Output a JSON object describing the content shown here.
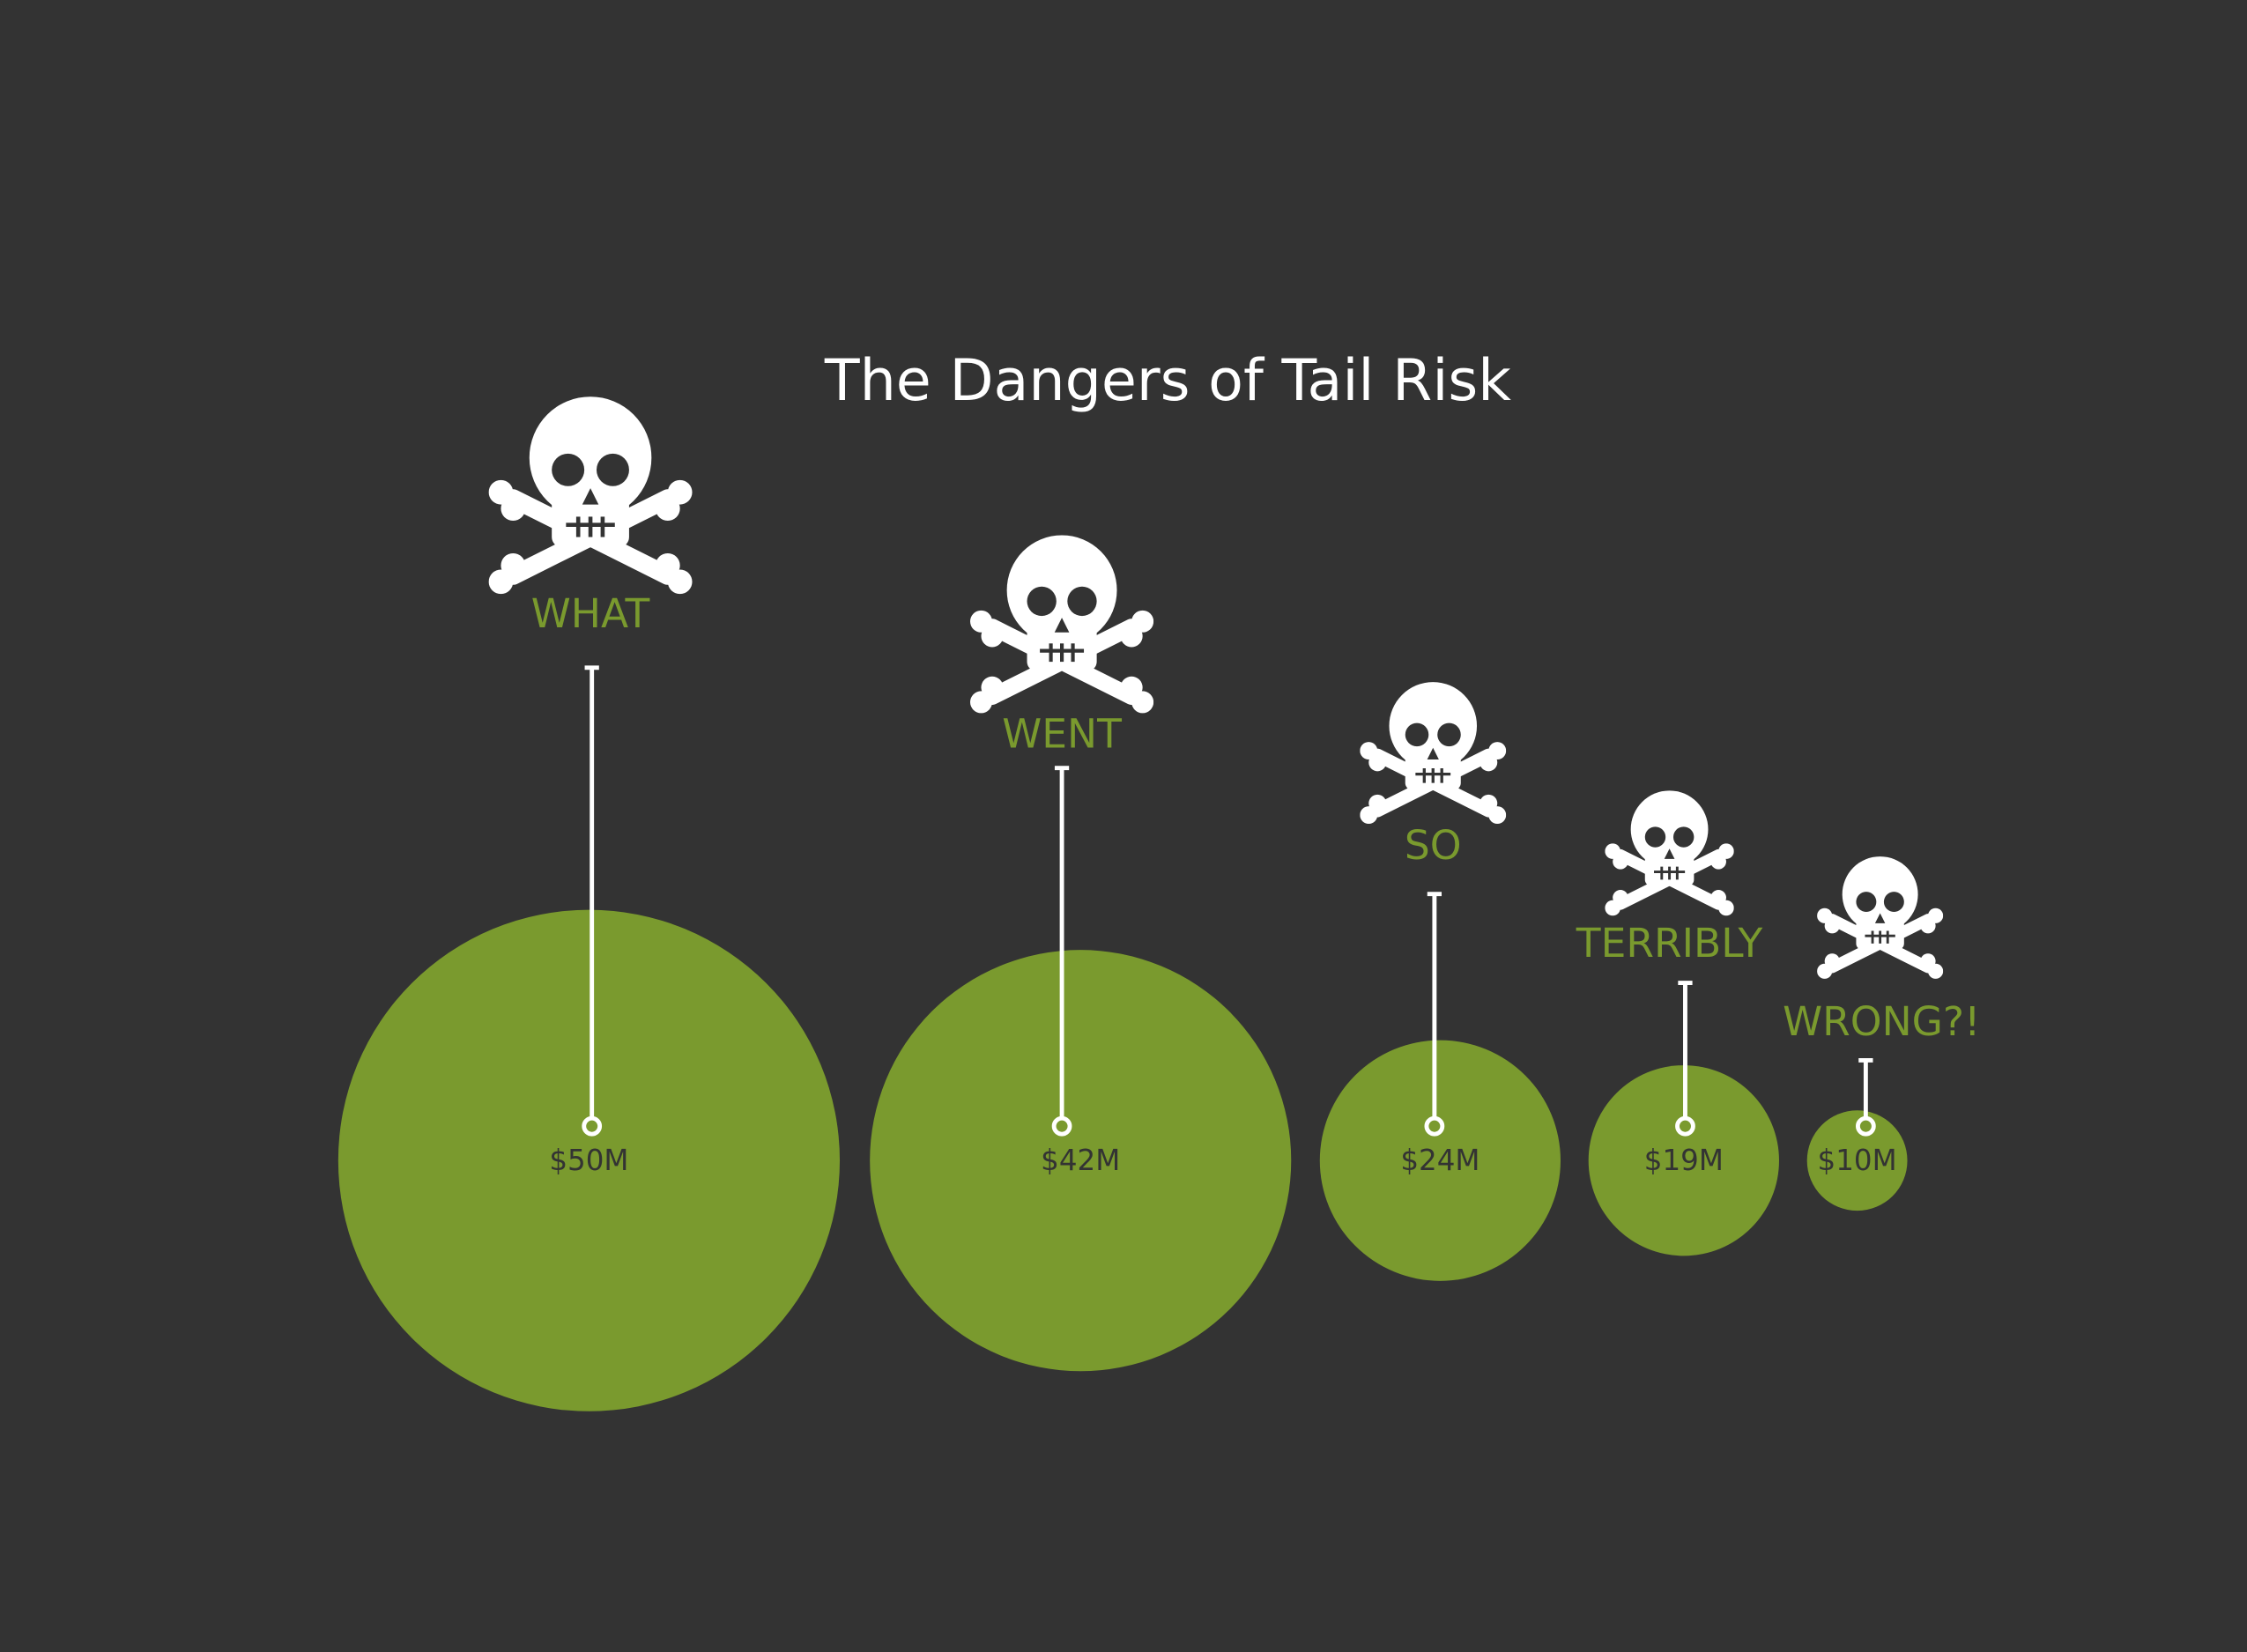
{
  "chart_data": {
    "type": "bubble",
    "title": "The Dangers of Tail Risk",
    "categories": [
      "WHAT",
      "WENT",
      "SO",
      "TERRIBLY",
      "WRONG?!"
    ],
    "values": [
      50,
      42,
      24,
      19,
      10
    ],
    "value_labels": [
      "$50M",
      "$42M",
      "$24M",
      "$19M",
      "$10M"
    ],
    "color": "#7a9a2e"
  }
}
